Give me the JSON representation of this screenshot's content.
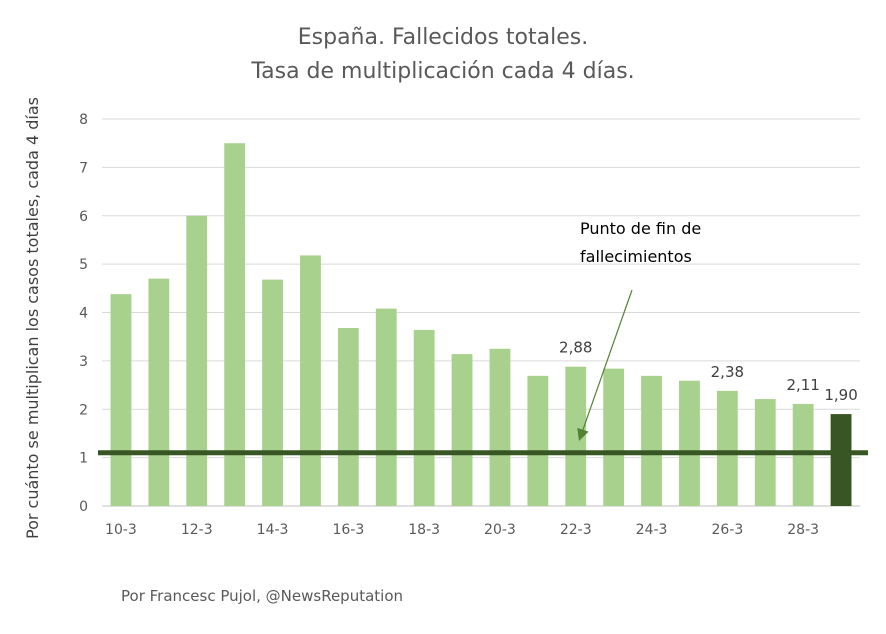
{
  "chart_data": {
    "type": "bar",
    "title_lines": [
      "España. Fallecidos totales.",
      "Tasa de multiplicación cada 4 días."
    ],
    "ylabel": "Por cuánto se multiplican los casos totales, cada 4 días",
    "xlabel": "",
    "ylim": [
      0,
      8
    ],
    "yticks": [
      "0",
      "1",
      "2",
      "3",
      "4",
      "5",
      "6",
      "7",
      "8"
    ],
    "grid": true,
    "categories": [
      "10-3",
      "11-3",
      "12-3",
      "13-3",
      "14-3",
      "15-3",
      "16-3",
      "17-3",
      "18-3",
      "19-3",
      "20-3",
      "21-3",
      "22-3",
      "23-3",
      "24-3",
      "25-3",
      "26-3",
      "27-3",
      "28-3",
      "29-3"
    ],
    "xtick_labels": [
      "10-3",
      "",
      "12-3",
      "",
      "14-3",
      "",
      "16-3",
      "",
      "18-3",
      "",
      "20-3",
      "",
      "22-3",
      "",
      "24-3",
      "",
      "26-3",
      "",
      "28-3",
      ""
    ],
    "values": [
      4.38,
      4.7,
      6.0,
      7.5,
      4.68,
      5.18,
      3.68,
      4.08,
      3.64,
      3.14,
      3.25,
      2.69,
      2.88,
      2.84,
      2.69,
      2.59,
      2.38,
      2.21,
      2.11,
      1.9
    ],
    "data_labels": [
      "",
      "",
      "",
      "",
      "",
      "",
      "",
      "",
      "",
      "",
      "",
      "",
      "2,88",
      "",
      "",
      "",
      "2,38",
      "",
      "2,11",
      "1,90"
    ],
    "bar_color": "#a9d18e",
    "highlight_color": "#375623",
    "highlight_index": 19,
    "reference_line": {
      "value": 1.1,
      "color": "#375623"
    },
    "annotation": {
      "lines": [
        "Punto de fin de",
        "fallecimientos"
      ],
      "target_category": "22-3"
    },
    "credit": "Por Francesc Pujol, @NewsReputation"
  }
}
